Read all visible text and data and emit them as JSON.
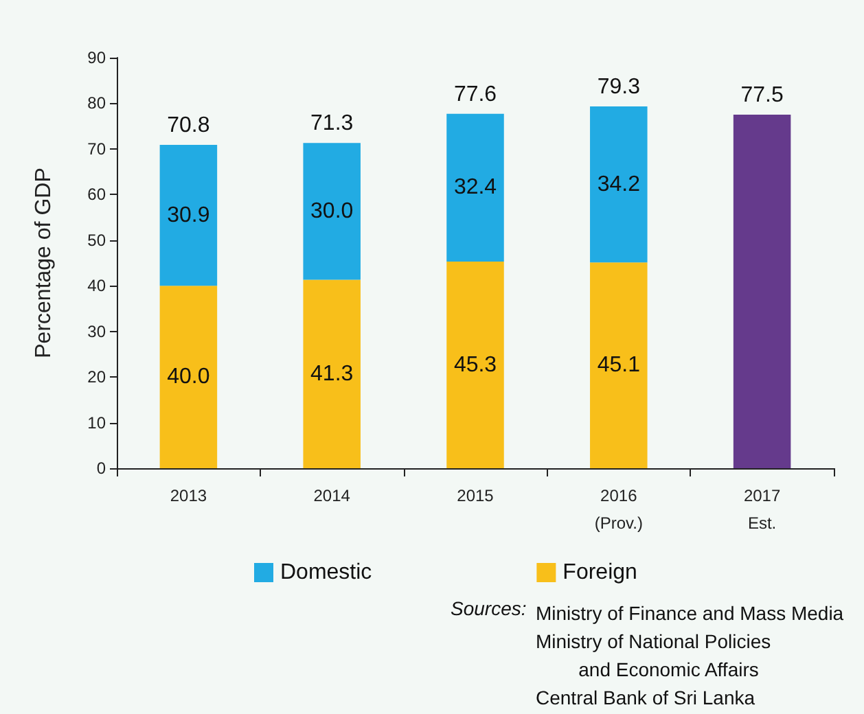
{
  "chart_data": {
    "type": "bar",
    "stacked": true,
    "categories": [
      "2013",
      "2014",
      "2015",
      "2016\n(Prov.)",
      "2017\nEst."
    ],
    "series": [
      {
        "name": "Foreign",
        "color": "#f8bf1a",
        "values": [
          40.0,
          41.3,
          45.3,
          45.1,
          null
        ],
        "value_labels": [
          "40.0",
          "41.3",
          "45.3",
          "45.1",
          null
        ]
      },
      {
        "name": "Domestic",
        "color": "#22abe3",
        "values": [
          30.9,
          30.0,
          32.4,
          34.2,
          null
        ],
        "value_labels": [
          "30.9",
          "30.0",
          "32.4",
          "34.2",
          null
        ]
      },
      {
        "color": "#653a8c",
        "values": [
          null,
          null,
          null,
          null,
          77.5
        ]
      }
    ],
    "totals": [
      "70.8",
      "71.3",
      "77.6",
      "79.3",
      "77.5"
    ],
    "ylabel": "Percentage of GDP",
    "ylim": [
      0,
      90
    ],
    "yticks": [
      0,
      10,
      20,
      30,
      40,
      50,
      60,
      70,
      80,
      90
    ],
    "grid": false,
    "legend": "bottom",
    "annotations": [
      "Sources:",
      "Ministry of Finance and Mass Media\nMinistry of National Policies\n        and Economic Affairs\nCentral Bank of Sri Lanka"
    ]
  }
}
